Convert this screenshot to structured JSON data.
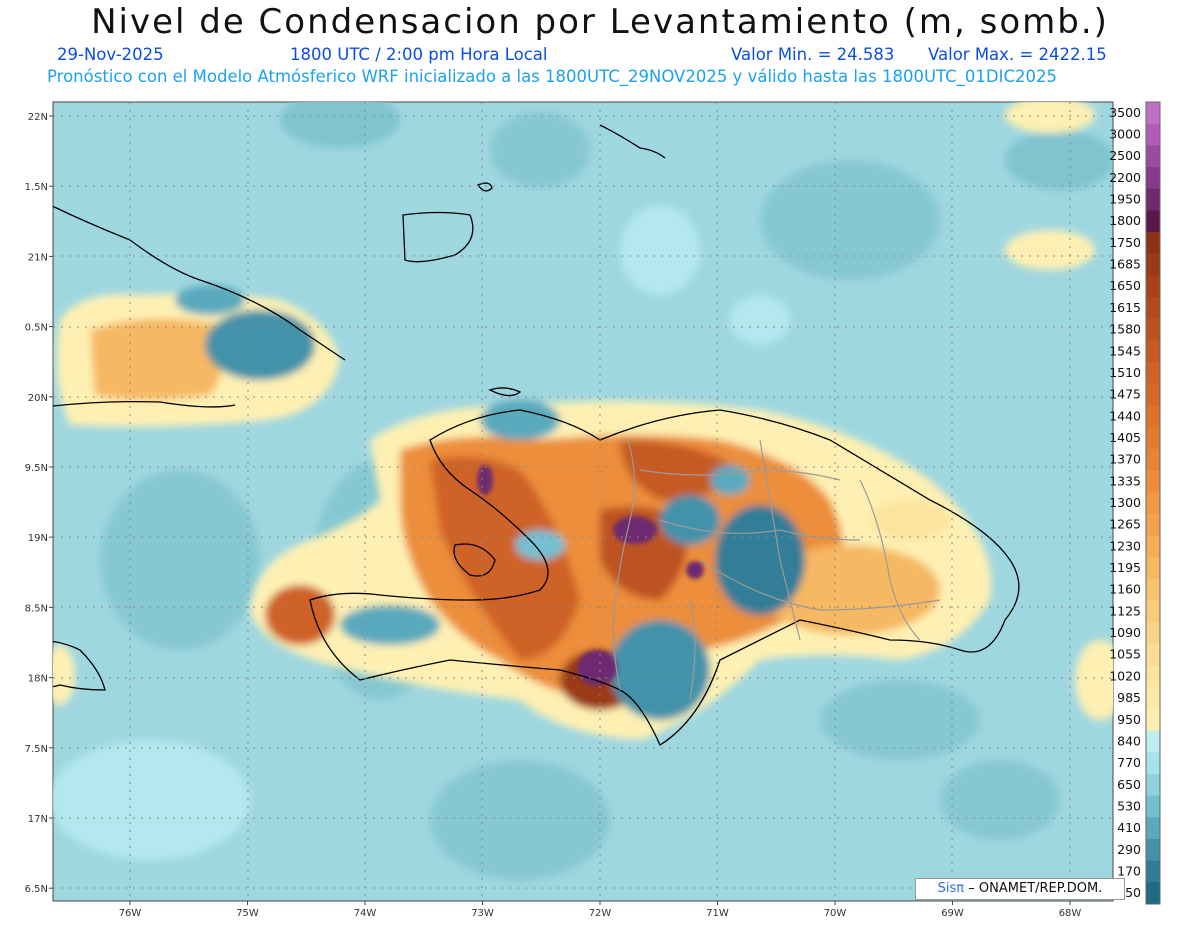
{
  "header": {
    "title": "Nivel de Condensacion por Levantamiento (m, somb.)",
    "date": "29-Nov-2025",
    "time": "1800 UTC / 2:00 pm Hora Local",
    "min_value": "Valor Min. = 24.583",
    "max_value": "Valor Max. = 2422.15",
    "model_note": "Pronóstico con el Modelo Atmósferico WRF inicializado a las 1800UTC_29NOV2025 y válido hasta las  1800UTC_01DIC2025"
  },
  "axes": {
    "lat_labels": [
      "22N",
      "1.5N",
      "21N",
      "0.5N",
      "20N",
      "9.5N",
      "19N",
      "8.5N",
      "18N",
      "7.5N",
      "17N",
      "6.5N"
    ],
    "lon_labels": [
      "76W",
      "75W",
      "74W",
      "73W",
      "72W",
      "71W",
      "70W",
      "69W",
      "68W"
    ]
  },
  "colorbar": {
    "levels": [
      "3500",
      "3000",
      "2500",
      "2200",
      "1950",
      "1800",
      "1750",
      "1685",
      "1650",
      "1615",
      "1580",
      "1545",
      "1510",
      "1475",
      "1440",
      "1405",
      "1370",
      "1335",
      "1300",
      "1265",
      "1230",
      "1195",
      "1160",
      "1125",
      "1090",
      "1055",
      "1020",
      "985",
      "950",
      "840",
      "770",
      "650",
      "530",
      "410",
      "290",
      "170",
      "50"
    ],
    "colors": [
      "#c270c4",
      "#b45ab8",
      "#9a4aa0",
      "#873a8c",
      "#6e2a70",
      "#5a1848",
      "#8c3215",
      "#9a3a16",
      "#a84218",
      "#b24a1c",
      "#bd5220",
      "#c65a22",
      "#cf6226",
      "#d66a28",
      "#dd722c",
      "#e27a30",
      "#e78434",
      "#ec8e3a",
      "#f09842",
      "#f2a24a",
      "#f4ae56",
      "#f6b862",
      "#f8c26e",
      "#f9cc7a",
      "#fad486",
      "#fbdc92",
      "#fce49e",
      "#fdeaa8",
      "#fef0b2",
      "#bdeef2",
      "#a6e2ea",
      "#8fd2de",
      "#74bfcf",
      "#5aa9bd",
      "#4392aa",
      "#307d97",
      "#1f6a85"
    ]
  },
  "credit": {
    "brand": "Sisπ",
    "text": "– ONAMET/REP.DOM."
  },
  "map_colors": {
    "ocean": "#9fd7e0",
    "land_outline": "#000000",
    "province_lines": "#9a9a9a"
  }
}
